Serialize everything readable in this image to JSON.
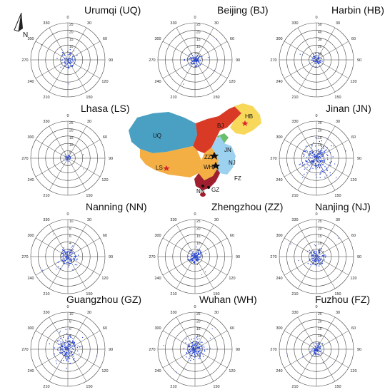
{
  "north_label": "N",
  "map": {
    "labels": [
      "UQ",
      "BJ",
      "HB",
      "ZZ",
      "JN",
      "NJ",
      "WH",
      "LS",
      "FZ",
      "NN",
      "GZ"
    ]
  },
  "chart_data": [
    {
      "type": "scatter",
      "title": "Urumqi (UQ)",
      "rings": [
        "5",
        "10",
        "15",
        "20",
        "25"
      ],
      "angles": [
        "0",
        "30",
        "60",
        "90",
        "120",
        "150",
        "180",
        "210",
        "240",
        "270",
        "300",
        "330"
      ],
      "spread": 6,
      "count": 70
    },
    {
      "type": "scatter",
      "title": "Beijing (BJ)",
      "rings": [
        "5",
        "10",
        "15",
        "20",
        "25"
      ],
      "angles": [
        "0",
        "30",
        "60",
        "90",
        "120",
        "150",
        "180",
        "210",
        "240",
        "270",
        "300",
        "330"
      ],
      "spread": 5,
      "count": 90
    },
    {
      "type": "scatter",
      "title": "Harbin (HB)",
      "rings": [
        "10",
        "20",
        "30",
        "40",
        "50"
      ],
      "angles": [
        "0",
        "30",
        "60",
        "90",
        "120",
        "150",
        "180",
        "210",
        "240",
        "270",
        "300",
        "330"
      ],
      "spread": 3.5,
      "count": 60
    },
    {
      "type": "scatter",
      "title": "Lhasa (LS)",
      "rings": [
        "5",
        "10",
        "15",
        "20",
        "25"
      ],
      "angles": [
        "0",
        "30",
        "60",
        "90",
        "120",
        "150",
        "180",
        "210",
        "240",
        "270",
        "300",
        "330"
      ],
      "spread": 2.5,
      "count": 25
    },
    {
      "type": "scatter",
      "title": "Jinan (JN)",
      "rings": [
        "5",
        "10",
        "15",
        "20",
        "25"
      ],
      "angles": [
        "0",
        "30",
        "60",
        "90",
        "120",
        "150",
        "180",
        "210",
        "240",
        "270",
        "300",
        "330"
      ],
      "spread": 10,
      "count": 200
    },
    {
      "type": "scatter",
      "title": "Nanning (NN)",
      "rings": [
        "2",
        "4",
        "6",
        "8",
        "10"
      ],
      "angles": [
        "0",
        "30",
        "60",
        "90",
        "120",
        "150",
        "180",
        "210",
        "240",
        "270",
        "300",
        "330"
      ],
      "spread": 7,
      "count": 110
    },
    {
      "type": "scatter",
      "title": "Zhengzhou (ZZ)",
      "rings": [
        "5",
        "10",
        "15",
        "20",
        "25"
      ],
      "angles": [
        "0",
        "30",
        "60",
        "90",
        "120",
        "150",
        "180",
        "210",
        "240",
        "270",
        "300",
        "330"
      ],
      "spread": 5,
      "count": 110
    },
    {
      "type": "scatter",
      "title": "Nanjing (NJ)",
      "rings": [
        "5",
        "10",
        "15",
        "20",
        "25"
      ],
      "angles": [
        "0",
        "30",
        "60",
        "90",
        "120",
        "150",
        "180",
        "210",
        "240",
        "270",
        "300",
        "330"
      ],
      "spread": 6,
      "count": 110
    },
    {
      "type": "scatter",
      "title": "Guangzhou (GZ)",
      "rings": [
        "2",
        "4",
        "6",
        "8",
        "10"
      ],
      "angles": [
        "0",
        "30",
        "60",
        "90",
        "120",
        "150",
        "180",
        "210",
        "240",
        "270",
        "300",
        "330"
      ],
      "spread": 9,
      "count": 160
    },
    {
      "type": "scatter",
      "title": "Wuhan (WH)",
      "rings": [
        "5",
        "10",
        "15",
        "20",
        "25"
      ],
      "angles": [
        "0",
        "30",
        "60",
        "90",
        "120",
        "150",
        "180",
        "210",
        "240",
        "270",
        "300",
        "330"
      ],
      "spread": 7,
      "count": 150
    },
    {
      "type": "scatter",
      "title": "Fuzhou (FZ)",
      "rings": [
        "5",
        "10",
        "15",
        "20",
        "25"
      ],
      "angles": [
        "0",
        "30",
        "60",
        "90",
        "120",
        "150",
        "180",
        "210",
        "240",
        "270",
        "300",
        "330"
      ],
      "spread": 4,
      "count": 70
    }
  ]
}
